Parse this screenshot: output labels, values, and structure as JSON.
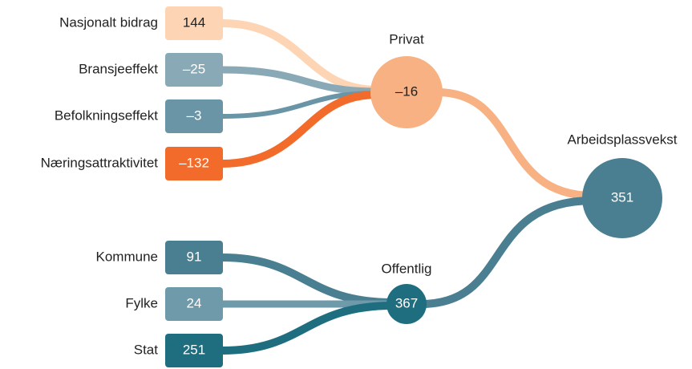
{
  "sources": [
    {
      "label": "Nasjonalt bidrag",
      "value": "144"
    },
    {
      "label": "Bransjeeffekt",
      "value": "–25"
    },
    {
      "label": "Befolkningseffekt",
      "value": "–3"
    },
    {
      "label": "Næringsattraktivitet",
      "value": "–132"
    },
    {
      "label": "Kommune",
      "value": "91"
    },
    {
      "label": "Fylke",
      "value": "24"
    },
    {
      "label": "Stat",
      "value": "251"
    }
  ],
  "groups": [
    {
      "label": "Privat",
      "value": "–16"
    },
    {
      "label": "Offentlig",
      "value": "367"
    }
  ],
  "total": {
    "label": "Arbeidsplassvekst",
    "value": "351"
  }
}
